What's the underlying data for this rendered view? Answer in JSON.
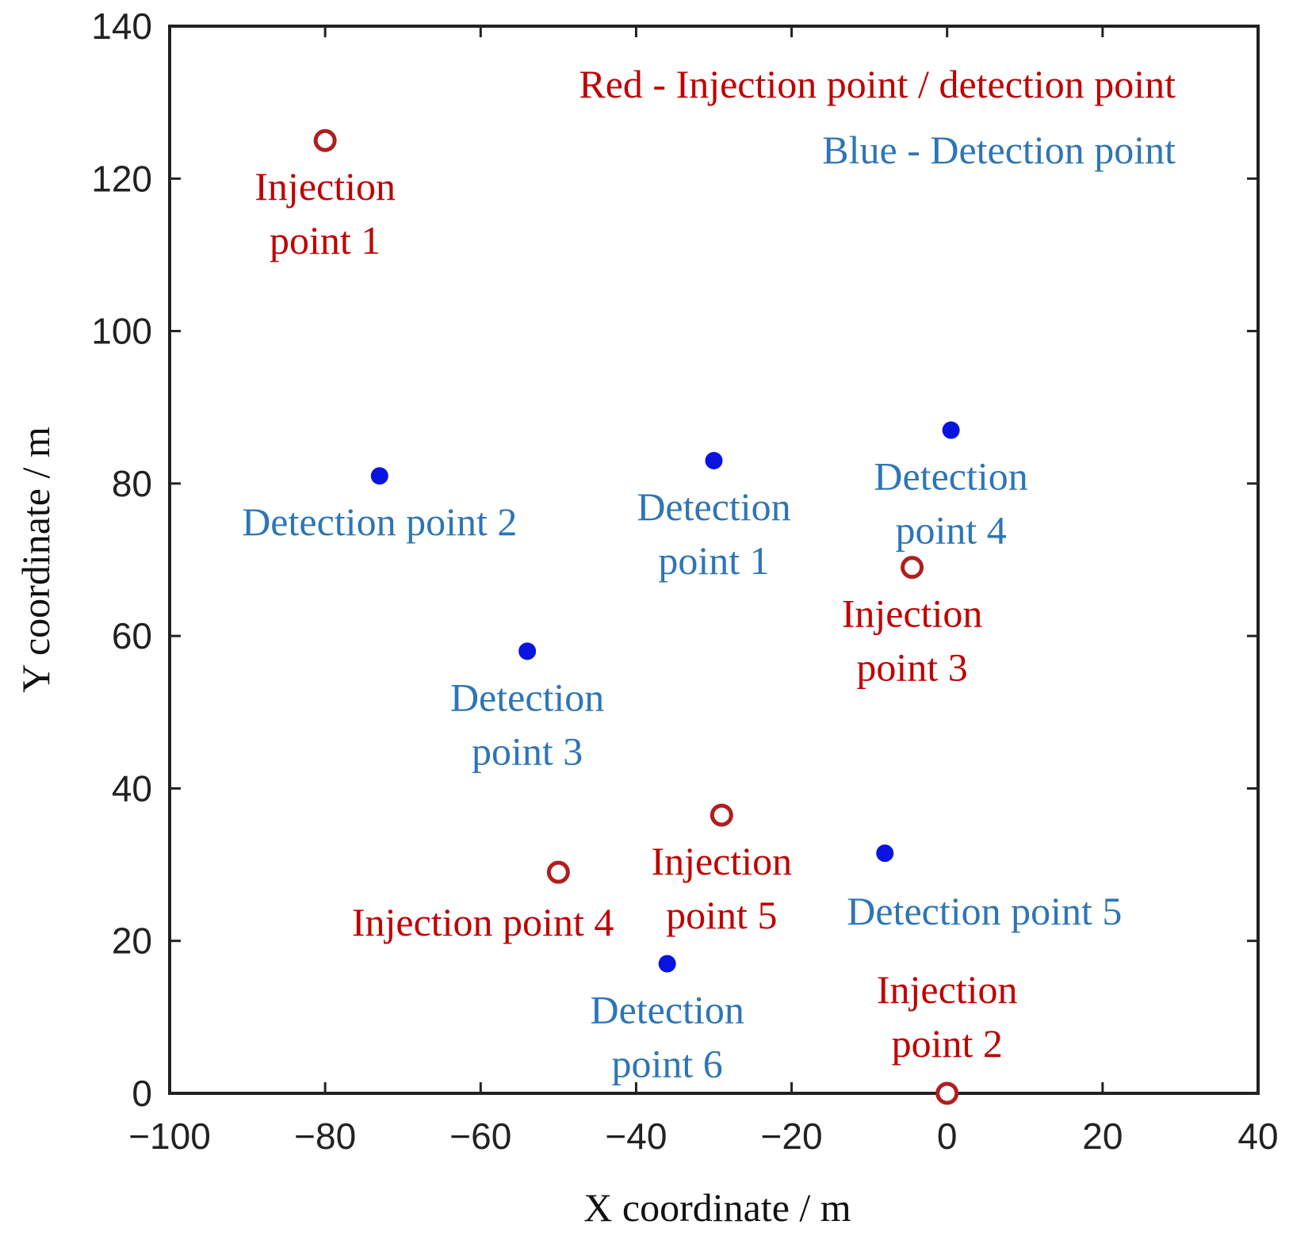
{
  "chart_data": {
    "type": "scatter",
    "title": "",
    "xlabel": "X coordinate / m",
    "ylabel": "Y coordinate / m",
    "xlim": [
      -100,
      40
    ],
    "ylim": [
      0,
      140
    ],
    "xticks": [
      -100,
      -80,
      -60,
      -40,
      -20,
      0,
      20,
      40
    ],
    "yticks": [
      0,
      20,
      40,
      60,
      80,
      100,
      120,
      140
    ],
    "xtick_labels": [
      "−100",
      "−80",
      "−60",
      "−40",
      "−20",
      "0",
      "20",
      "40"
    ],
    "ytick_labels": [
      "0",
      "20",
      "40",
      "60",
      "80",
      "100",
      "120",
      "140"
    ],
    "legend": {
      "position": "top-right",
      "entries": [
        {
          "text": "Red - Injection point / detection point",
          "color": "#c00000"
        },
        {
          "text": "Blue - Detection point",
          "color": "#2e75b6"
        }
      ]
    },
    "series": [
      {
        "name": "Injection points",
        "marker": "open-circle",
        "marker_color": "#b01e1e",
        "label_color": "#c00000",
        "points": [
          {
            "x": -80,
            "y": 125,
            "label_lines": [
              "Injection",
              "point 1"
            ],
            "label_pos": "below"
          },
          {
            "x": 0,
            "y": 0,
            "label_lines": [
              "Injection",
              "point 2"
            ],
            "label_pos": "above"
          },
          {
            "x": -4.5,
            "y": 69,
            "label_lines": [
              "Injection",
              "point 3"
            ],
            "label_pos": "below"
          },
          {
            "x": -50,
            "y": 29,
            "label_lines": [
              "Injection  point 4"
            ],
            "label_pos": "below-left"
          },
          {
            "x": -29,
            "y": 36.5,
            "label_lines": [
              "Injection",
              "point 5"
            ],
            "label_pos": "below"
          }
        ]
      },
      {
        "name": "Detection points",
        "marker": "filled-dot",
        "marker_color": "#0a14e0",
        "label_color": "#2e75b6",
        "points": [
          {
            "x": -30,
            "y": 83,
            "label_lines": [
              "Detection",
              "point 1"
            ],
            "label_pos": "below"
          },
          {
            "x": -73,
            "y": 81,
            "label_lines": [
              "Detection point 2"
            ],
            "label_pos": "below"
          },
          {
            "x": -54,
            "y": 58,
            "label_lines": [
              "Detection",
              "point 3"
            ],
            "label_pos": "below"
          },
          {
            "x": 0.5,
            "y": 87,
            "label_lines": [
              "Detection",
              "point 4"
            ],
            "label_pos": "below"
          },
          {
            "x": -8,
            "y": 31.5,
            "label_lines": [
              "Detection point 5"
            ],
            "label_pos": "below-right"
          },
          {
            "x": -36,
            "y": 17,
            "label_lines": [
              "Detection",
              "point 6"
            ],
            "label_pos": "below"
          }
        ]
      }
    ]
  }
}
